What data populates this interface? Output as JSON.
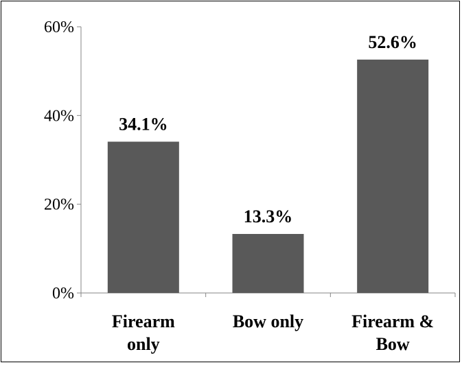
{
  "chart_data": {
    "type": "bar",
    "categories": [
      [
        "Firearm",
        "only"
      ],
      [
        "Bow only"
      ],
      [
        "Firearm &",
        "Bow"
      ]
    ],
    "values": [
      34.1,
      13.3,
      52.6
    ],
    "value_labels": [
      "34.1%",
      "13.3%",
      "52.6%"
    ],
    "yticks": [
      {
        "value": 0,
        "label": "0%"
      },
      {
        "value": 20,
        "label": "20%"
      },
      {
        "value": 40,
        "label": "40%"
      },
      {
        "value": 60,
        "label": "60%"
      }
    ],
    "ylim": [
      0,
      60
    ],
    "title": "",
    "xlabel": "",
    "ylabel": "",
    "grid": false,
    "legend": "none",
    "bar_color": "#595959",
    "axis_color": "#868686"
  }
}
